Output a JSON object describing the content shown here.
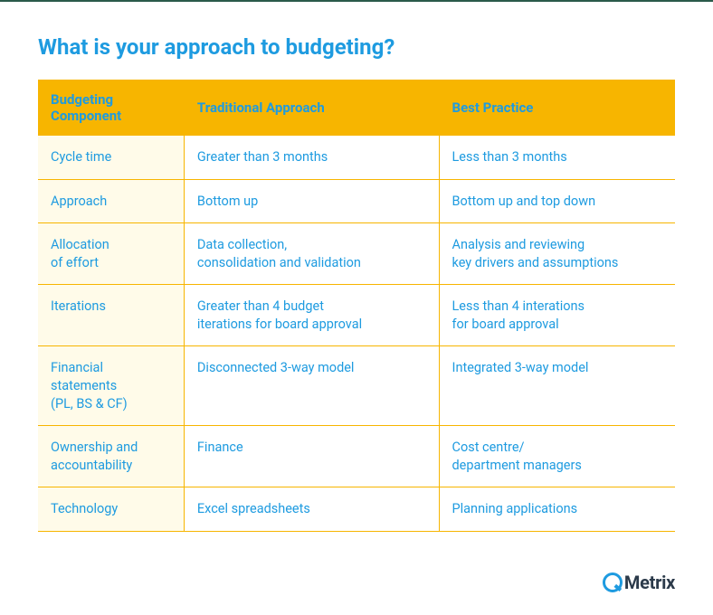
{
  "title": "What is your approach to budgeting?",
  "title_color": "#1e9be0",
  "title_fontsize": 24,
  "table": {
    "header_bg": "#f7b500",
    "header_text_color": "#1e9be0",
    "row_border_color": "#f7b500",
    "col0_bg": "#fffbe9",
    "col_other_bg": "#ffffff",
    "cell_text_color": "#1e9be0",
    "columns": [
      "Budgeting\nComponent",
      "Traditional Approach",
      "Best Practice"
    ],
    "rows": [
      {
        "component": "Cycle time",
        "traditional": "Greater than 3 months",
        "best": "Less than 3 months"
      },
      {
        "component": "Approach",
        "traditional": "Bottom up",
        "best": "Bottom up and top down"
      },
      {
        "component": "Allocation\nof effort",
        "traditional": "Data collection,\nconsolidation and validation",
        "best": "Analysis and reviewing\nkey drivers and assumptions"
      },
      {
        "component": "Iterations",
        "traditional": "Greater than 4 budget\niterations for board approval",
        "best": "Less than 4 interations\nfor board approval"
      },
      {
        "component": "Financial\nstatements\n(PL, BS & CF)",
        "traditional": "Disconnected 3-way model",
        "best": "Integrated 3-way model"
      },
      {
        "component": "Ownership and\naccountability",
        "traditional": "Finance",
        "best": "Cost centre/\ndepartment managers"
      },
      {
        "component": "Technology",
        "traditional": "Excel spreadsheets",
        "best": "Planning applications"
      }
    ]
  },
  "logo": {
    "q_color": "#1e9be0",
    "text": "Metrix",
    "text_color": "#2b3a4a"
  },
  "frame_line_color": "#2a5a4a",
  "background_color": "#ffffff"
}
